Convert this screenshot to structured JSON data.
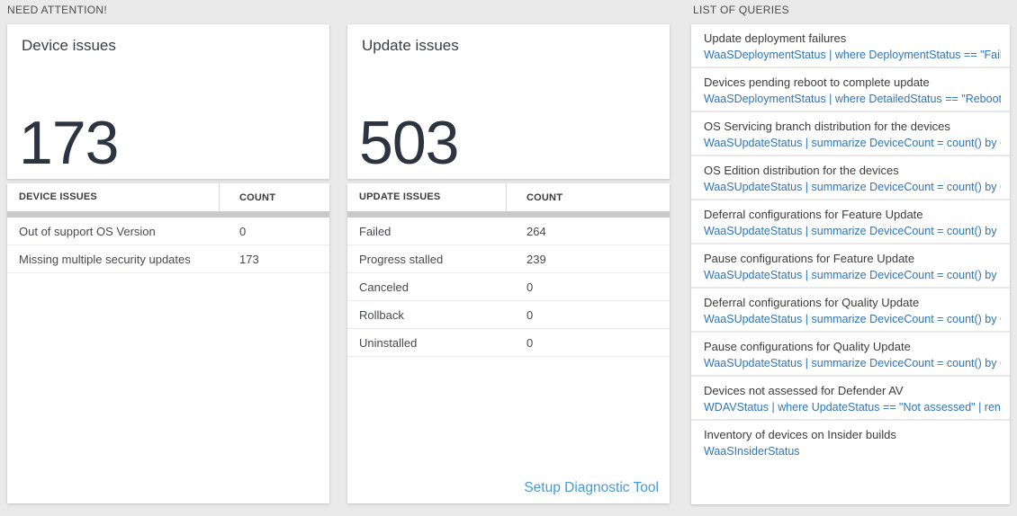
{
  "colors": {
    "background": "#eaeaea",
    "card_background": "#ffffff",
    "big_number_text": "#2b3440",
    "query_link_blue": "#2e75b8",
    "setup_link_blue": "#459ad5",
    "scrollbar_gray": "#c9c9c9"
  },
  "need_attention": {
    "section_title": "NEED ATTENTION!",
    "device_card": {
      "title": "Device issues",
      "value": "173"
    },
    "update_card": {
      "title": "Update issues",
      "value": "503"
    },
    "device_table": {
      "columns": [
        "DEVICE ISSUES",
        "COUNT"
      ],
      "rows": [
        {
          "label": "Out of support OS Version",
          "count": "0"
        },
        {
          "label": "Missing multiple security updates",
          "count": "173"
        }
      ]
    },
    "update_table": {
      "columns": [
        "UPDATE ISSUES",
        "COUNT"
      ],
      "rows": [
        {
          "label": "Failed",
          "count": "264"
        },
        {
          "label": "Progress stalled",
          "count": "239"
        },
        {
          "label": "Canceled",
          "count": "0"
        },
        {
          "label": "Rollback",
          "count": "0"
        },
        {
          "label": "Uninstalled",
          "count": "0"
        }
      ],
      "footer_link": "Setup Diagnostic Tool"
    }
  },
  "query_section": {
    "section_title": "LIST OF QUERIES",
    "queries": [
      {
        "title": "Update deployment failures",
        "query": "WaaSDeploymentStatus | where DeploymentStatus == \"Failed\" |..."
      },
      {
        "title": "Devices pending reboot to complete update",
        "query": "WaaSDeploymentStatus | where DetailedStatus == \"Reboot pend..."
      },
      {
        "title": "OS Servicing branch distribution for the devices",
        "query": "WaaSUpdateStatus | summarize DeviceCount = count() by OSSer..."
      },
      {
        "title": "OS Edition distribution for the devices",
        "query": "WaaSUpdateStatus | summarize DeviceCount = count() by OSEdit..."
      },
      {
        "title": "Deferral configurations for Feature Update",
        "query": "WaaSUpdateStatus | summarize DeviceCount = count() by Featur..."
      },
      {
        "title": "Pause configurations for Feature Update",
        "query": "WaaSUpdateStatus | summarize DeviceCount = count() by Featur..."
      },
      {
        "title": "Deferral configurations for Quality Update",
        "query": "WaaSUpdateStatus | summarize DeviceCount = count() by Qualit..."
      },
      {
        "title": "Pause configurations for Quality Update",
        "query": "WaaSUpdateStatus | summarize DeviceCount = count() by Qualit..."
      },
      {
        "title": "Devices not assessed for Defender AV",
        "query": "WDAVStatus | where UpdateStatus == \"Not assessed\" | render ta..."
      },
      {
        "title": "Inventory of devices on Insider builds",
        "query": "WaaSInsiderStatus"
      }
    ]
  }
}
